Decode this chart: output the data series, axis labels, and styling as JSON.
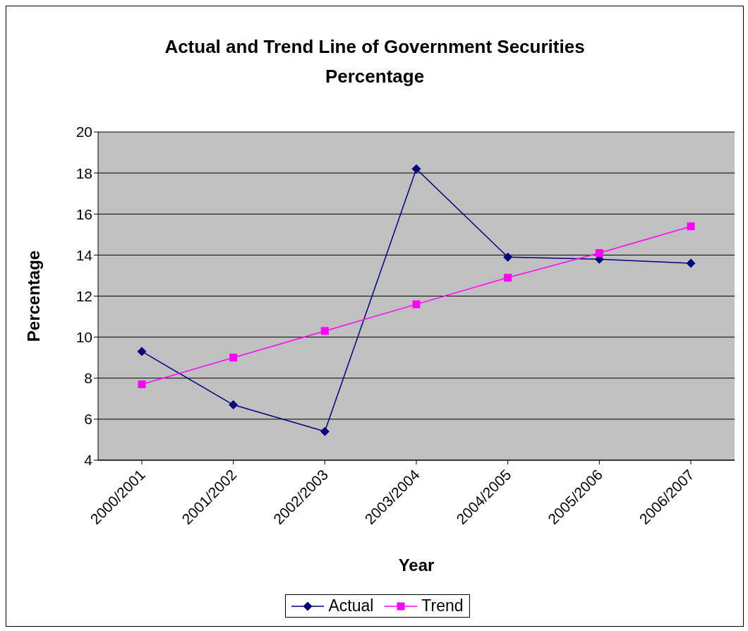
{
  "chart_data": {
    "type": "line",
    "title": "Actual and Trend Line of Government Securities Percentage",
    "xlabel": "Year",
    "ylabel": "Percentage",
    "categories": [
      "2000/2001",
      "2001/2002",
      "2002/2003",
      "2003/2004",
      "2004/2005",
      "2005/2006",
      "2006/2007"
    ],
    "series": [
      {
        "name": "Actual",
        "color": "#000080",
        "marker": "diamond",
        "values": [
          9.3,
          6.7,
          5.4,
          18.2,
          13.9,
          13.8,
          13.6
        ]
      },
      {
        "name": "Trend",
        "color": "#ff00ff",
        "marker": "square",
        "values": [
          7.7,
          9.0,
          10.3,
          11.6,
          12.9,
          14.1,
          15.4
        ]
      }
    ],
    "ylim": [
      4,
      20
    ],
    "yticks": [
      4,
      6,
      8,
      10,
      12,
      14,
      16,
      18,
      20
    ],
    "grid": "y",
    "legend": "bottom",
    "line_style": "solid"
  }
}
